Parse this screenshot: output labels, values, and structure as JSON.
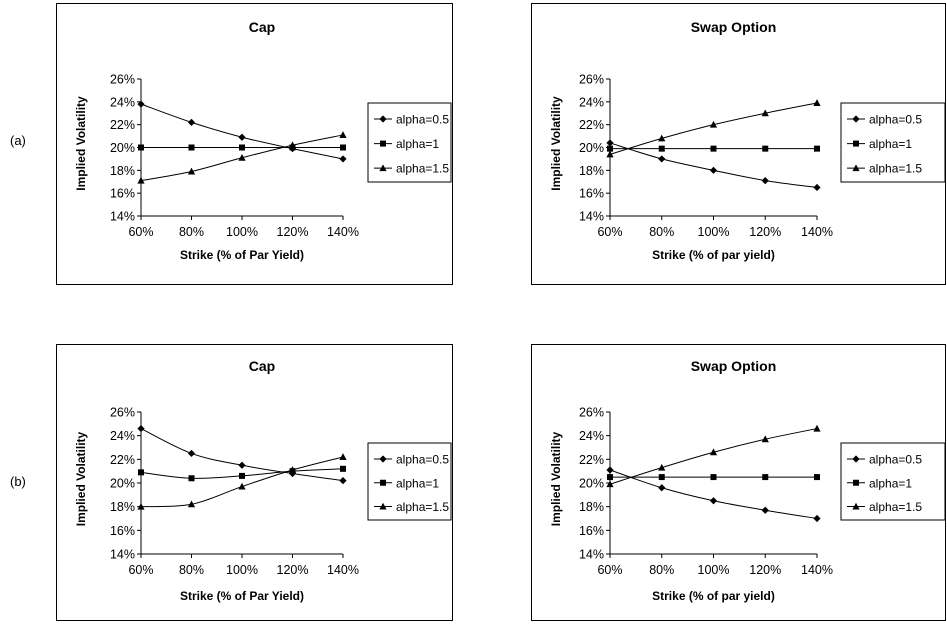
{
  "row_labels": [
    "(a)",
    "(b)"
  ],
  "chart_data": [
    {
      "type": "line",
      "title": "Cap",
      "xlabel": "Strike (% of Par Yield)",
      "ylabel": "Implied Volatility",
      "categories": [
        "60%",
        "80%",
        "100%",
        "120%",
        "140%"
      ],
      "y_ticks": [
        "14%",
        "16%",
        "18%",
        "20%",
        "22%",
        "24%",
        "26%"
      ],
      "ylim": [
        14,
        26
      ],
      "grid": false,
      "legend": "right",
      "series": [
        {
          "name": "alpha=0.5",
          "marker": "diamond",
          "values": [
            23.8,
            22.2,
            20.9,
            19.9,
            19.0
          ]
        },
        {
          "name": "alpha=1",
          "marker": "square",
          "values": [
            20.0,
            20.0,
            20.0,
            20.0,
            20.0
          ]
        },
        {
          "name": "alpha=1.5",
          "marker": "triangle",
          "values": [
            17.1,
            17.9,
            19.1,
            20.2,
            21.1
          ]
        }
      ]
    },
    {
      "type": "line",
      "title": "Swap Option",
      "xlabel": "Strike (% of par yield)",
      "ylabel": "Implied Volatility",
      "categories": [
        "60%",
        "80%",
        "100%",
        "120%",
        "140%"
      ],
      "y_ticks": [
        "14%",
        "16%",
        "18%",
        "20%",
        "22%",
        "24%",
        "26%"
      ],
      "ylim": [
        14,
        26
      ],
      "grid": false,
      "legend": "right",
      "series": [
        {
          "name": "alpha=0.5",
          "marker": "diamond",
          "values": [
            20.4,
            19.0,
            18.0,
            17.1,
            16.5
          ]
        },
        {
          "name": "alpha=1",
          "marker": "square",
          "values": [
            19.9,
            19.9,
            19.9,
            19.9,
            19.9
          ]
        },
        {
          "name": "alpha=1.5",
          "marker": "triangle",
          "values": [
            19.4,
            20.8,
            22.0,
            23.0,
            23.9
          ]
        }
      ]
    },
    {
      "type": "line",
      "title": "Cap",
      "xlabel": "Strike (% of Par Yield)",
      "ylabel": "Implied Volatility",
      "categories": [
        "60%",
        "80%",
        "100%",
        "120%",
        "140%"
      ],
      "y_ticks": [
        "14%",
        "16%",
        "18%",
        "20%",
        "22%",
        "24%",
        "26%"
      ],
      "ylim": [
        14,
        26
      ],
      "grid": false,
      "legend": "right",
      "series": [
        {
          "name": "alpha=0.5",
          "marker": "diamond",
          "values": [
            24.6,
            22.5,
            21.5,
            20.8,
            20.2
          ]
        },
        {
          "name": "alpha=1",
          "marker": "square",
          "values": [
            20.9,
            20.4,
            20.6,
            21.0,
            21.2
          ]
        },
        {
          "name": "alpha=1.5",
          "marker": "triangle",
          "values": [
            18.0,
            18.2,
            19.7,
            21.1,
            22.2
          ]
        }
      ]
    },
    {
      "type": "line",
      "title": "Swap Option",
      "xlabel": "Strike (% of par yield)",
      "ylabel": "Implied Volatility",
      "categories": [
        "60%",
        "80%",
        "100%",
        "120%",
        "140%"
      ],
      "y_ticks": [
        "14%",
        "16%",
        "18%",
        "20%",
        "22%",
        "24%",
        "26%"
      ],
      "ylim": [
        14,
        26
      ],
      "grid": false,
      "legend": "right",
      "series": [
        {
          "name": "alpha=0.5",
          "marker": "diamond",
          "values": [
            21.1,
            19.6,
            18.5,
            17.7,
            17.0
          ]
        },
        {
          "name": "alpha=1",
          "marker": "square",
          "values": [
            20.5,
            20.5,
            20.5,
            20.5,
            20.5
          ]
        },
        {
          "name": "alpha=1.5",
          "marker": "triangle",
          "values": [
            19.9,
            21.3,
            22.6,
            23.7,
            24.6
          ]
        }
      ]
    }
  ]
}
